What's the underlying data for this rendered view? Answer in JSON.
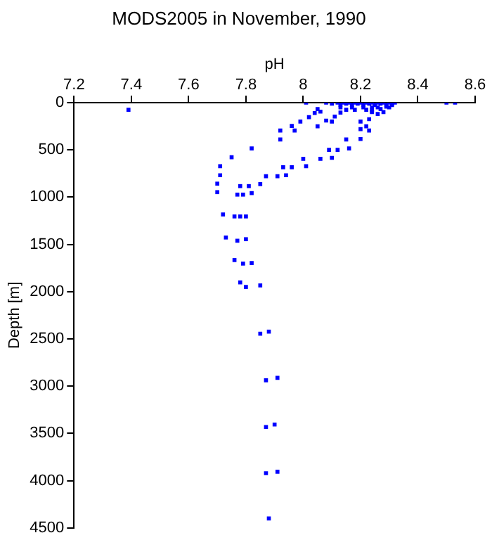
{
  "chart_data": {
    "type": "scatter",
    "title": "MODS2005 in November, 1990",
    "xlabel": "pH",
    "ylabel": "Depth [m]",
    "xlim": [
      7.2,
      8.6
    ],
    "xticks": [
      7.2,
      7.4,
      7.6,
      7.8,
      8,
      8.2,
      8.4,
      8.6
    ],
    "ylim": [
      4500,
      0
    ],
    "yticks": [
      0,
      500,
      1000,
      1500,
      2000,
      2500,
      3000,
      3500,
      4000,
      4500
    ],
    "marker": "square",
    "series": [
      {
        "color": "#0000ff",
        "x": [
          7.39,
          8.01,
          8.5,
          8.53,
          8.08,
          8.12,
          8.14,
          8.16,
          8.18,
          8.2,
          8.22,
          8.24,
          8.26,
          8.28,
          8.3,
          8.32,
          8.1,
          8.15,
          8.19,
          8.23,
          8.27,
          8.31,
          8.13,
          8.17,
          8.21,
          8.25,
          8.29,
          8.31,
          8.13,
          8.17,
          8.21,
          8.24,
          8.26,
          8.3,
          8.15,
          8.18,
          8.22,
          8.24,
          8.24,
          8.28,
          7.92,
          7.92,
          7.96,
          7.99,
          8.02,
          8.04,
          8.05,
          8.06,
          7.97,
          8.05,
          8.08,
          8.1,
          8.11,
          8.13,
          8.2,
          8.2,
          8.2,
          8.22,
          8.23,
          8.24,
          8.23,
          8.26,
          8.27,
          8.29,
          8.15,
          8.16,
          8.12,
          8.09,
          8.1,
          8.06,
          8,
          8.01,
          7.96,
          7.93,
          7.94,
          7.91,
          7.87,
          7.85,
          7.82,
          7.82,
          7.81,
          7.78,
          7.79,
          7.77,
          7.75,
          7.71,
          7.71,
          7.7,
          7.7,
          7.72,
          7.76,
          7.78,
          7.8,
          7.73,
          7.77,
          7.8,
          7.76,
          7.79,
          7.82,
          7.78,
          7.8,
          7.85,
          7.85,
          7.88,
          7.87,
          7.91,
          7.87,
          7.9,
          7.87,
          7.91,
          7.88
        ],
        "values": [
          75,
          0,
          0,
          0,
          0,
          0,
          0,
          0,
          0,
          0,
          0,
          0,
          0,
          0,
          0,
          0,
          10,
          10,
          10,
          10,
          10,
          10,
          25,
          25,
          25,
          25,
          25,
          25,
          50,
          50,
          50,
          50,
          50,
          50,
          75,
          75,
          75,
          75,
          100,
          100,
          295,
          390,
          247,
          200,
          153,
          110,
          68,
          95,
          295,
          250,
          190,
          200,
          147,
          105,
          200,
          280,
          385,
          250,
          175,
          95,
          295,
          120,
          68,
          42,
          390,
          484,
          500,
          500,
          584,
          594,
          594,
          673,
          684,
          684,
          768,
          778,
          778,
          862,
          484,
          957,
          883,
          883,
          973,
          973,
          578,
          673,
          768,
          857,
          947,
          1183,
          1204,
          1204,
          1204,
          1427,
          1461,
          1445,
          1666,
          1703,
          1697,
          1902,
          1950,
          1934,
          2445,
          2423,
          2938,
          2912,
          3432,
          3406,
          3921,
          3905,
          4400
        ]
      }
    ]
  }
}
